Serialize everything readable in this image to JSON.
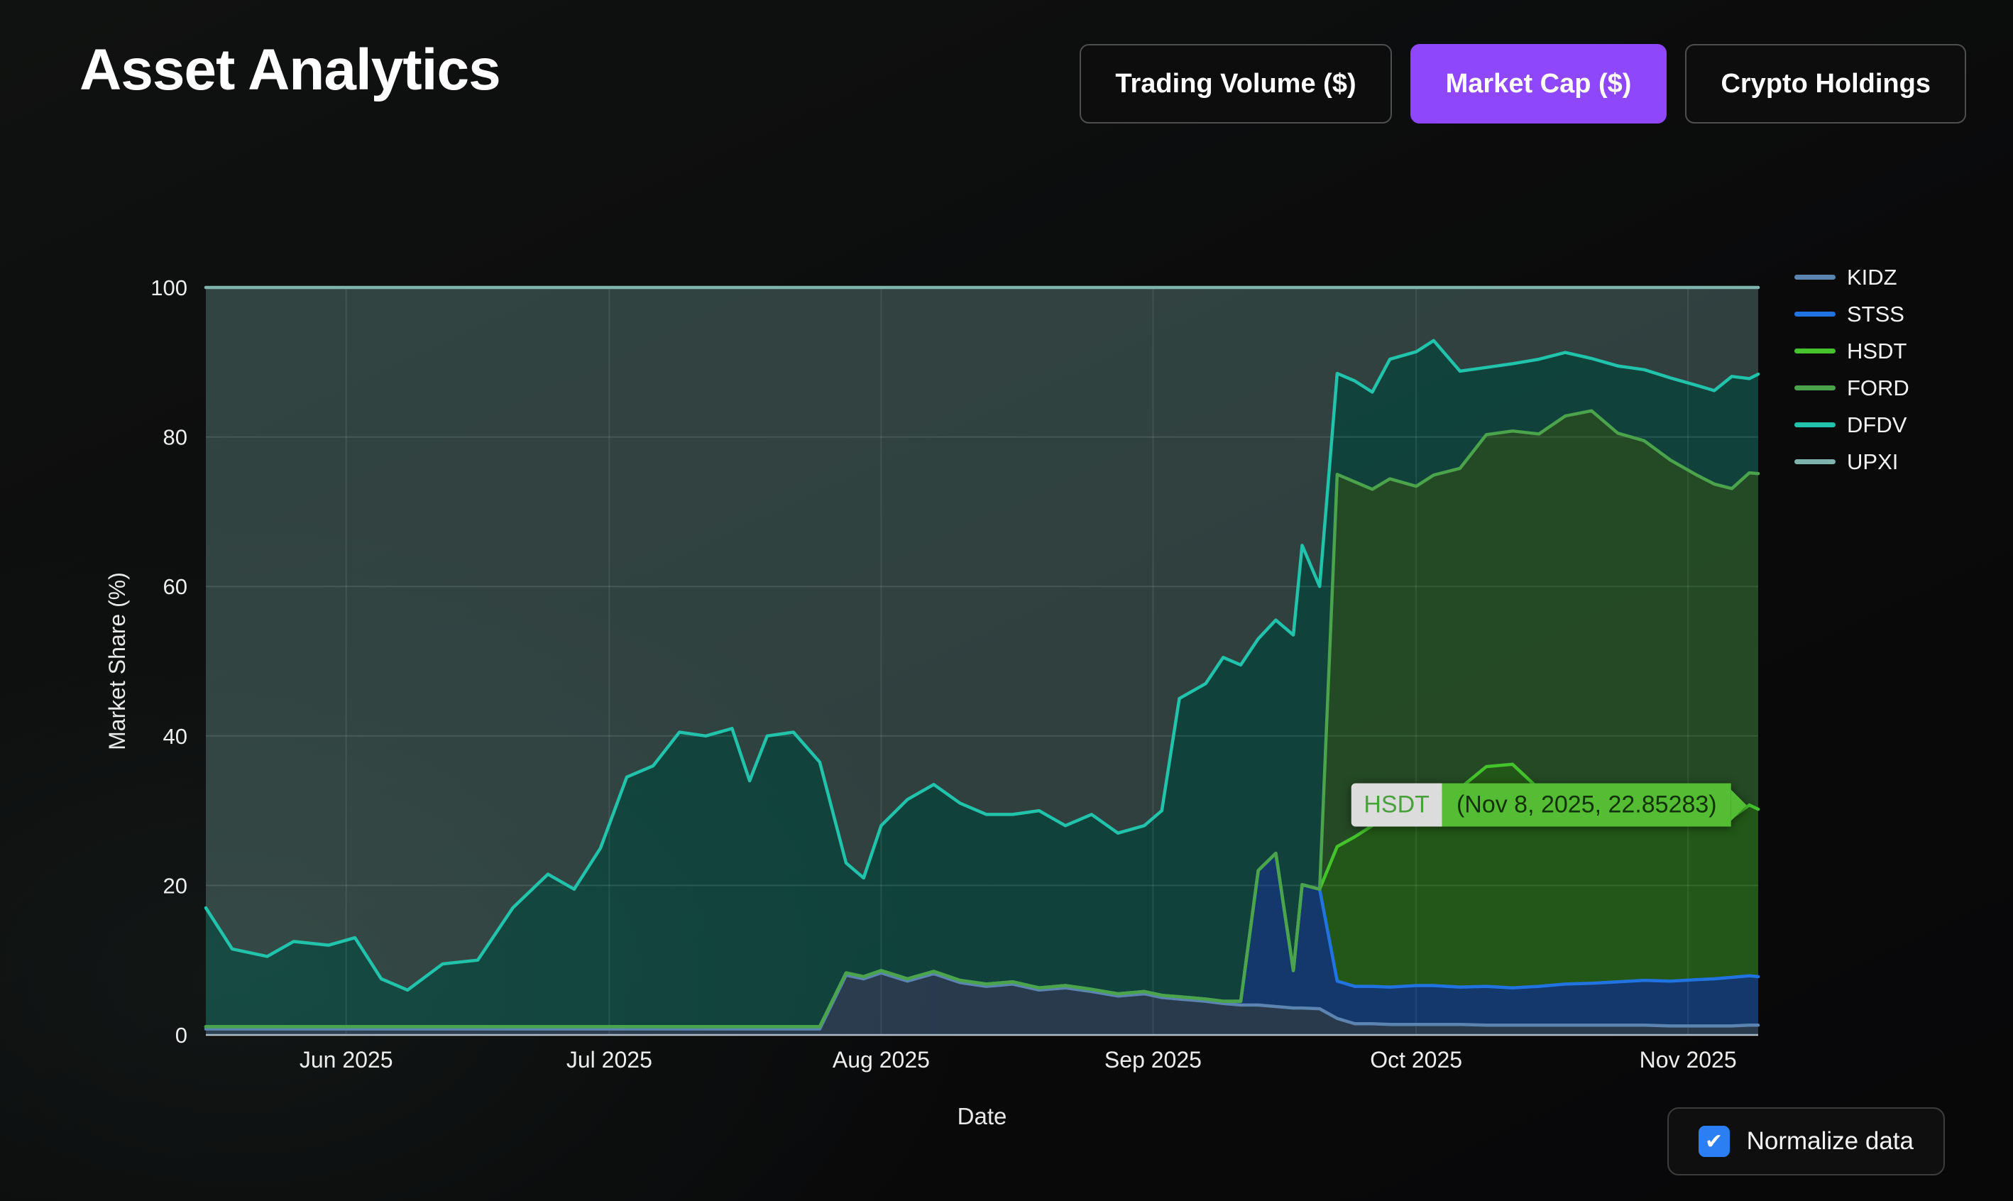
{
  "header": {
    "title": "Asset Analytics",
    "tabs": [
      {
        "label": "Trading Volume ($)",
        "active": false
      },
      {
        "label": "Market Cap ($)",
        "active": true
      },
      {
        "label": "Crypto Holdings",
        "active": false
      }
    ],
    "active_tab_color": "#8e47fa"
  },
  "chart_data": {
    "type": "area",
    "stacked": true,
    "normalized_to_100": true,
    "title": "",
    "xlabel": "Date",
    "ylabel": "Market Share (%)",
    "ylim": [
      0,
      100
    ],
    "yticks": [
      0,
      20,
      40,
      60,
      80,
      100
    ],
    "xticks": [
      {
        "date": "2025-06-01",
        "label": "Jun 2025"
      },
      {
        "date": "2025-07-01",
        "label": "Jul 2025"
      },
      {
        "date": "2025-08-01",
        "label": "Aug 2025"
      },
      {
        "date": "2025-09-01",
        "label": "Sep 2025"
      },
      {
        "date": "2025-10-01",
        "label": "Oct 2025"
      },
      {
        "date": "2025-11-01",
        "label": "Nov 2025"
      }
    ],
    "grid": true,
    "legend_position": "top-right-outside",
    "x": [
      "2025-05-16",
      "2025-05-19",
      "2025-05-23",
      "2025-05-26",
      "2025-05-30",
      "2025-06-02",
      "2025-06-05",
      "2025-06-08",
      "2025-06-12",
      "2025-06-16",
      "2025-06-20",
      "2025-06-24",
      "2025-06-27",
      "2025-06-30",
      "2025-07-03",
      "2025-07-06",
      "2025-07-09",
      "2025-07-12",
      "2025-07-15",
      "2025-07-17",
      "2025-07-19",
      "2025-07-22",
      "2025-07-25",
      "2025-07-28",
      "2025-07-30",
      "2025-08-01",
      "2025-08-04",
      "2025-08-07",
      "2025-08-10",
      "2025-08-13",
      "2025-08-16",
      "2025-08-19",
      "2025-08-22",
      "2025-08-25",
      "2025-08-28",
      "2025-08-31",
      "2025-09-02",
      "2025-09-04",
      "2025-09-07",
      "2025-09-09",
      "2025-09-11",
      "2025-09-13",
      "2025-09-15",
      "2025-09-17",
      "2025-09-18",
      "2025-09-20",
      "2025-09-22",
      "2025-09-24",
      "2025-09-26",
      "2025-09-28",
      "2025-10-01",
      "2025-10-03",
      "2025-10-06",
      "2025-10-09",
      "2025-10-12",
      "2025-10-15",
      "2025-10-18",
      "2025-10-21",
      "2025-10-24",
      "2025-10-27",
      "2025-10-30",
      "2025-11-02",
      "2025-11-04",
      "2025-11-06",
      "2025-11-08",
      "2025-11-09"
    ],
    "series": [
      {
        "name": "KIDZ",
        "color": "#5b84b1",
        "fill_opacity": 0.4,
        "values": [
          0.8,
          0.8,
          0.8,
          0.8,
          0.8,
          0.8,
          0.8,
          0.8,
          0.8,
          0.8,
          0.8,
          0.8,
          0.8,
          0.8,
          0.8,
          0.8,
          0.8,
          0.8,
          0.8,
          0.8,
          0.8,
          0.8,
          0.8,
          8,
          7.5,
          8.3,
          7.2,
          8.2,
          7,
          6.5,
          6.8,
          6,
          6.3,
          5.8,
          5.2,
          5.5,
          5,
          4.8,
          4.5,
          4.2,
          4,
          4,
          3.8,
          3.6,
          3.6,
          3.5,
          2.2,
          1.5,
          1.5,
          1.4,
          1.4,
          1.4,
          1.4,
          1.3,
          1.3,
          1.3,
          1.3,
          1.3,
          1.3,
          1.3,
          1.2,
          1.2,
          1.2,
          1.2,
          1.3,
          1.3
        ]
      },
      {
        "name": "STSS",
        "color": "#2273e2",
        "fill_opacity": 0.45,
        "values": [
          0.3,
          0.3,
          0.3,
          0.3,
          0.3,
          0.3,
          0.3,
          0.3,
          0.3,
          0.3,
          0.3,
          0.3,
          0.3,
          0.3,
          0.3,
          0.3,
          0.3,
          0.3,
          0.3,
          0.3,
          0.3,
          0.3,
          0.3,
          0.3,
          0.3,
          0.3,
          0.3,
          0.3,
          0.3,
          0.3,
          0.3,
          0.3,
          0.3,
          0.3,
          0.3,
          0.3,
          0.3,
          0.3,
          0.3,
          0.3,
          0.5,
          18,
          20.5,
          5,
          16.5,
          16,
          5,
          5,
          5,
          5,
          5.2,
          5.2,
          5,
          5.2,
          5,
          5.2,
          5.5,
          5.6,
          5.8,
          6,
          6,
          6.2,
          6.3,
          6.5,
          6.6,
          6.5
        ]
      },
      {
        "name": "HSDT",
        "color": "#44c32c",
        "fill_opacity": 0.42,
        "values": [
          0,
          0,
          0,
          0,
          0,
          0,
          0,
          0,
          0,
          0,
          0,
          0,
          0,
          0,
          0,
          0,
          0,
          0,
          0,
          0,
          0,
          0,
          0,
          0,
          0,
          0,
          0,
          0,
          0,
          0,
          0,
          0,
          0,
          0,
          0,
          0,
          0,
          0,
          0,
          0,
          0,
          0,
          0,
          0,
          0,
          0,
          18,
          20,
          21.5,
          23,
          23.3,
          25.3,
          26.6,
          29.4,
          29.9,
          26.4,
          26,
          25,
          24.5,
          23.6,
          22.6,
          22,
          21.6,
          21.4,
          22.85283,
          22.4
        ]
      },
      {
        "name": "FORD",
        "color": "#4ba34b",
        "fill_opacity": 0.42,
        "values": [
          0,
          0,
          0,
          0,
          0,
          0,
          0,
          0,
          0,
          0,
          0,
          0,
          0,
          0,
          0,
          0,
          0,
          0,
          0,
          0,
          0,
          0,
          0,
          0,
          0,
          0,
          0,
          0,
          0,
          0,
          0,
          0,
          0,
          0,
          0,
          0,
          0,
          0,
          0,
          0,
          0,
          0,
          0,
          0,
          0,
          0,
          49.8,
          47.5,
          45,
          45,
          43.5,
          43,
          42.8,
          44.4,
          44.6,
          47.5,
          50,
          51.6,
          48.9,
          48.6,
          47.1,
          45.5,
          44.6,
          44,
          44.45,
          44.9
        ]
      },
      {
        "name": "DFDV",
        "color": "#21c3ab",
        "fill_opacity": 0.3,
        "values": [
          15.9,
          10.4,
          9.4,
          11.4,
          10.9,
          11.9,
          6.4,
          4.9,
          8.4,
          8.9,
          15.9,
          20.4,
          18.4,
          23.9,
          33.4,
          34.9,
          39.4,
          38.9,
          39.9,
          32.9,
          38.9,
          39.4,
          35.4,
          14.7,
          13.2,
          19.4,
          24,
          25,
          23.7,
          22.7,
          22.4,
          23.7,
          21.4,
          23.4,
          21.5,
          22.2,
          24.7,
          39.9,
          42.2,
          46,
          45,
          31,
          31.2,
          44.9,
          45.4,
          40.5,
          13.5,
          13.5,
          13,
          16,
          18,
          18,
          13,
          9,
          9,
          10,
          8.5,
          7,
          9,
          9.5,
          11,
          12,
          12.5,
          15,
          12.6,
          13.3
        ]
      },
      {
        "name": "UPXI",
        "color": "#7fb3ae",
        "fill_opacity": 0.32,
        "values": [
          83,
          88.5,
          89.5,
          87.5,
          88,
          87,
          92.5,
          94,
          90.5,
          90,
          83,
          78.5,
          80.5,
          75,
          65.5,
          64,
          59.5,
          60,
          59,
          66,
          60,
          59.5,
          63.5,
          77,
          79,
          72,
          68.5,
          66.5,
          69,
          70.5,
          70.5,
          70,
          72,
          70.5,
          73,
          72,
          70,
          55,
          53,
          49.5,
          50.5,
          47,
          44.5,
          46.5,
          34.5,
          40,
          11.5,
          12.5,
          14,
          9.6,
          8.6,
          7.1,
          11.2,
          10.7,
          10.2,
          9.6,
          8.7,
          9.5,
          10.5,
          11,
          12.1,
          13.1,
          13.8,
          11.9,
          12.2,
          11.6
        ]
      }
    ]
  },
  "tooltip": {
    "series": "HSDT",
    "text": "(Nov 8, 2025, 22.85283)",
    "point_date": "2025-11-08",
    "point_value": 22.85283,
    "bg": "#55bd33"
  },
  "controls": {
    "normalize_label": "Normalize data",
    "checked": true,
    "checkmark": "✔"
  }
}
